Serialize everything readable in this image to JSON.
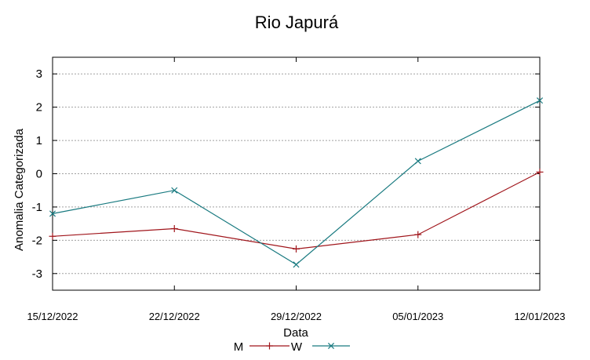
{
  "chart_data": {
    "type": "line",
    "title": "Rio Japurá",
    "xlabel": "Data",
    "ylabel": "Anomalia Categorizada",
    "categories": [
      "15/12/2022",
      "22/12/2022",
      "29/12/2022",
      "05/01/2023",
      "12/01/2023"
    ],
    "yticks": [
      3,
      2,
      1,
      0,
      -1,
      -2,
      -3
    ],
    "ylim": [
      -3.5,
      3.5
    ],
    "grid": true,
    "legend_position": "bottom-center",
    "series": [
      {
        "name": "M",
        "color": "#a0151b",
        "marker": "plus",
        "values": [
          -1.88,
          -1.65,
          -2.26,
          -1.83,
          0.05
        ]
      },
      {
        "name": "W",
        "color": "#197a80",
        "marker": "x",
        "values": [
          -1.2,
          -0.5,
          -2.73,
          0.38,
          2.2
        ]
      }
    ]
  }
}
